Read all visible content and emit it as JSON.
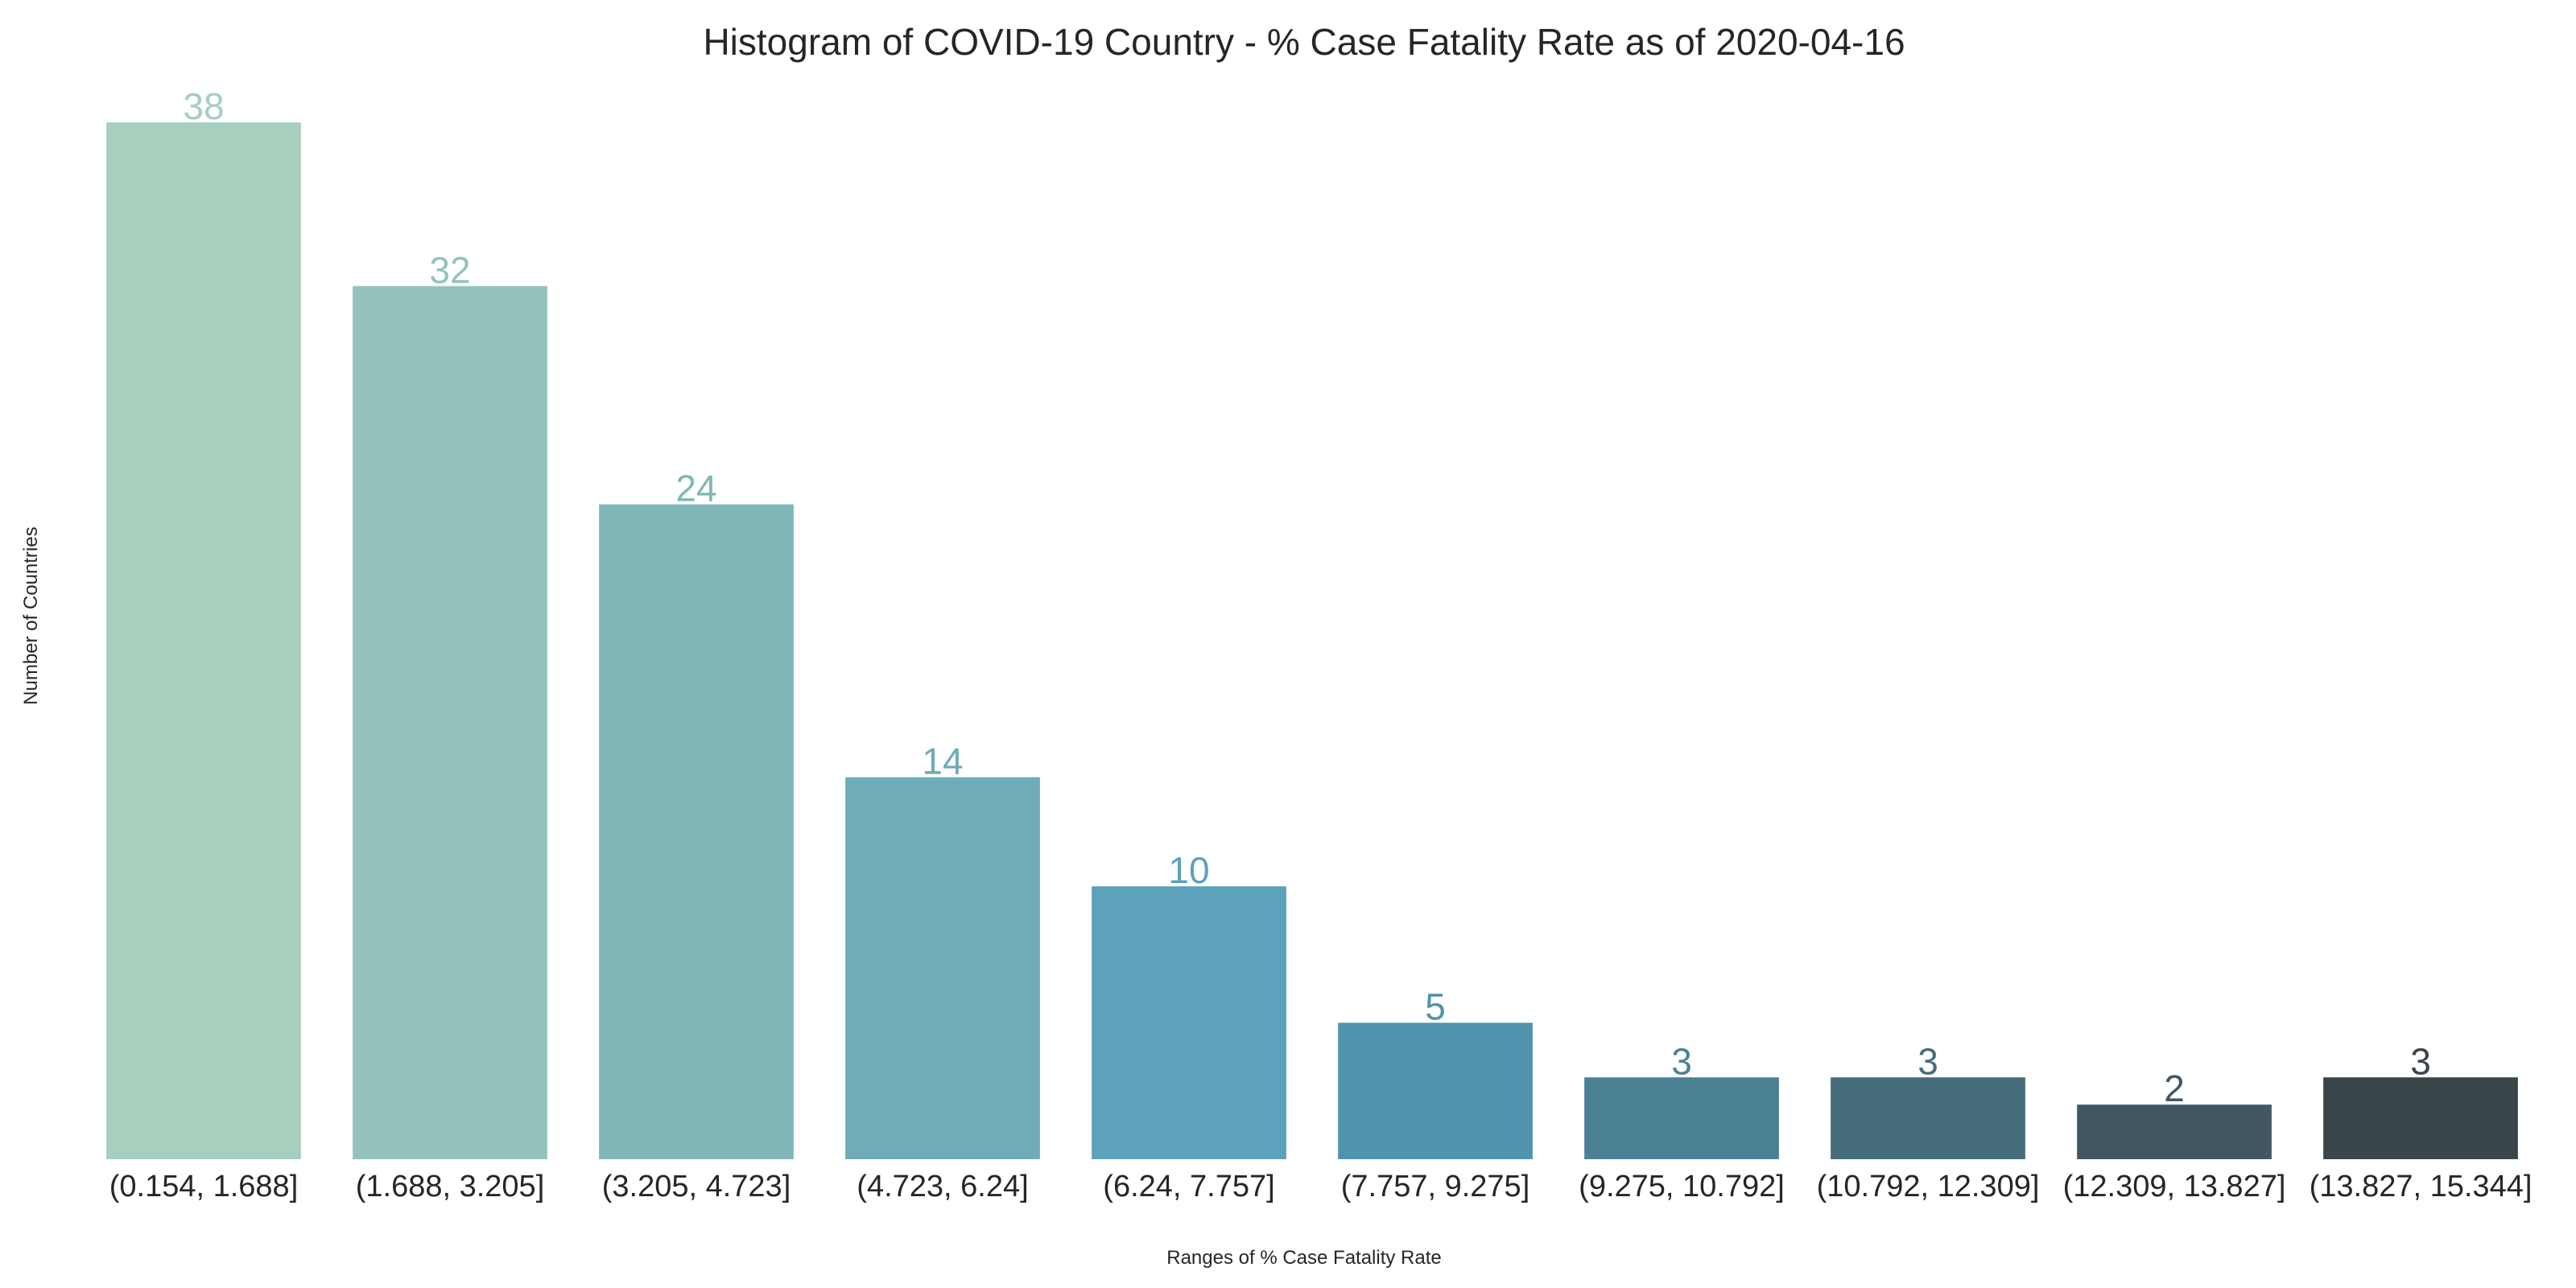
{
  "chart_data": {
    "type": "bar",
    "title": "Histogram of COVID-19 Country - % Case Fatality Rate as of 2020-04-16",
    "xlabel": "Ranges of % Case Fatality Rate",
    "ylabel": "Number of Countries",
    "categories": [
      "(0.154, 1.688]",
      "(1.688, 3.205]",
      "(3.205, 4.723]",
      "(4.723, 6.24]",
      "(6.24, 7.757]",
      "(7.757, 9.275]",
      "(9.275, 10.792]",
      "(10.792, 12.309]",
      "(12.309, 13.827]",
      "(13.827, 15.344]"
    ],
    "values": [
      38,
      32,
      24,
      14,
      10,
      5,
      3,
      3,
      2,
      3
    ],
    "colors": [
      "#a6cfbd",
      "#93c3bb",
      "#80b7b8",
      "#6eacb8",
      "#5da2bb",
      "#5093ac",
      "#4b8195",
      "#476c7c",
      "#415863",
      "#3a4549"
    ],
    "ylim": [
      0,
      38
    ],
    "grid": false,
    "legend": "none"
  }
}
